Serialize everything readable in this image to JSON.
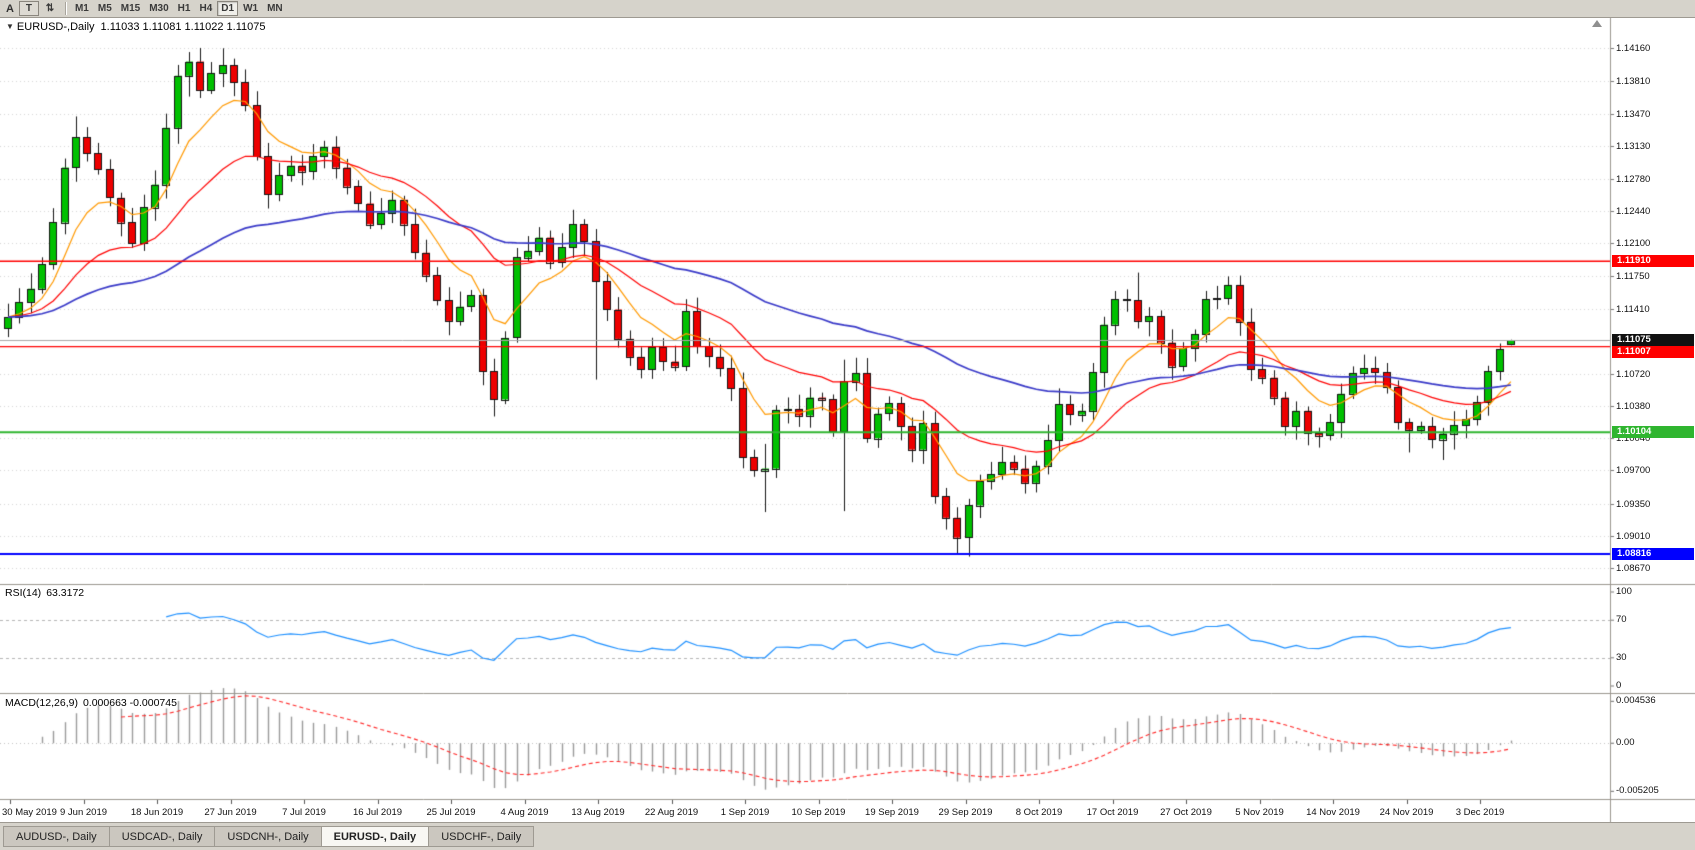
{
  "toolbar": {
    "label_a": "A",
    "text_button": "T",
    "cycle_button": "⇅",
    "timeframes": [
      "M1",
      "M5",
      "M15",
      "M30",
      "H1",
      "H4",
      "D1",
      "W1",
      "MN"
    ],
    "active_timeframe": "D1"
  },
  "chart_header": {
    "symbol_label": "EURUSD-,Daily",
    "ohlc": "1.11033 1.11081 1.11022 1.11075"
  },
  "price_scale_labels": [
    "1.14160",
    "1.13810",
    "1.13470",
    "1.13130",
    "1.12780",
    "1.12440",
    "1.12100",
    "1.11750",
    "1.11410",
    "1.10720",
    "1.10380",
    "1.10040",
    "1.09700",
    "1.09350",
    "1.09010",
    "1.08670"
  ],
  "levels": [
    {
      "value": "1.11910",
      "color": "#FF0000",
      "width": 1.3
    },
    {
      "value": "1.11007",
      "color": "#FF0000",
      "width": 1.3
    },
    {
      "value": "1.10104",
      "color": "#2FB52F",
      "width": 2
    },
    {
      "value": "1.08816",
      "color": "#0000FF",
      "width": 2
    }
  ],
  "current_price": {
    "value": "1.11075",
    "badge_color": "#111111",
    "line_color": "#a8a8a8"
  },
  "rsi_panel": {
    "name": "RSI(14)",
    "value": "63.3172",
    "scale_labels": [
      "100",
      "70",
      "30",
      "0"
    ],
    "level_lines": [
      70,
      30
    ],
    "line_color": "#1E90FF"
  },
  "macd_panel": {
    "name": "MACD(12,26,9)",
    "values": "0.000663 -0.000745",
    "scale_labels": [
      "0.004536",
      "0.00",
      "-0.005205"
    ],
    "hist_color": "#9a9a9a",
    "signal_color": "#FF2A2A"
  },
  "time_axis": [
    "30 May 2019",
    "9 Jun 2019",
    "18 Jun 2019",
    "27 Jun 2019",
    "7 Jul 2019",
    "16 Jul 2019",
    "25 Jul 2019",
    "4 Aug 2019",
    "13 Aug 2019",
    "22 Aug 2019",
    "1 Sep 2019",
    "10 Sep 2019",
    "19 Sep 2019",
    "29 Sep 2019",
    "8 Oct 2019",
    "17 Oct 2019",
    "27 Oct 2019",
    "5 Nov 2019",
    "14 Nov 2019",
    "24 Nov 2019",
    "3 Dec 2019"
  ],
  "tabs": [
    {
      "label": "AUDUSD-, Daily",
      "active": false
    },
    {
      "label": "USDCAD-, Daily",
      "active": false
    },
    {
      "label": "USDCNH-, Daily",
      "active": false
    },
    {
      "label": "EURUSD-, Daily",
      "active": true
    },
    {
      "label": "USDCHF-, Daily",
      "active": false
    }
  ],
  "chart_data": {
    "type": "candlestick",
    "symbol": "EURUSD",
    "period": "Daily",
    "y_range": [
      1.085,
      1.1448
    ],
    "macd_y_range": [
      -0.0056,
      0.0049
    ],
    "closes": [
      1.1132,
      1.1148,
      1.1162,
      1.1188,
      1.1232,
      1.129,
      1.1322,
      1.1305,
      1.1288,
      1.1258,
      1.1232,
      1.121,
      1.1248,
      1.1272,
      1.1332,
      1.1387,
      1.1402,
      1.1372,
      1.139,
      1.1398,
      1.138,
      1.1356,
      1.1302,
      1.1262,
      1.1282,
      1.1292,
      1.1286,
      1.1302,
      1.1312,
      1.129,
      1.127,
      1.1252,
      1.123,
      1.1242,
      1.1256,
      1.123,
      1.12,
      1.1176,
      1.115,
      1.1128,
      1.1143,
      1.1155,
      1.1075,
      1.1045,
      1.111,
      1.1195,
      1.1202,
      1.1216,
      1.119,
      1.1206,
      1.123,
      1.1212,
      1.117,
      1.114,
      1.1109,
      1.109,
      1.1077,
      1.11,
      1.1085,
      1.108,
      1.1138,
      1.1101,
      1.109,
      1.1078,
      1.1057,
      1.0984,
      1.097,
      1.0972,
      1.1034,
      1.1035,
      1.1028,
      1.1047,
      1.1045,
      1.1011,
      1.1064,
      1.1073,
      1.1004,
      1.103,
      1.1041,
      1.1017,
      1.0992,
      1.102,
      1.0943,
      1.092,
      1.0899,
      1.0933,
      1.0959,
      1.0966,
      1.0979,
      1.0972,
      1.0957,
      1.0975,
      1.1002,
      1.104,
      1.1029,
      1.1033,
      1.1074,
      1.1124,
      1.1151,
      1.115,
      1.1128,
      1.1133,
      1.1105,
      1.108,
      1.1099,
      1.1114,
      1.1151,
      1.1152,
      1.1166,
      1.1127,
      1.1077,
      1.1068,
      1.1047,
      1.1017,
      1.1033,
      1.101,
      1.1007,
      1.1021,
      1.1051,
      1.1073,
      1.1078,
      1.1074,
      1.1058,
      1.1021,
      1.1013,
      1.1017,
      1.1003,
      1.1009,
      1.1018,
      1.1024,
      1.1042,
      1.1075,
      1.1098,
      1.11075
    ],
    "overrides": {
      "6": [
        1.129,
        1.1344,
        1.1275,
        1.1322
      ],
      "16": [
        1.1387,
        1.1412,
        1.1365,
        1.1402
      ],
      "19": [
        1.139,
        1.1416,
        1.1375,
        1.1398
      ],
      "42": [
        1.1155,
        1.1162,
        1.106,
        1.1075
      ],
      "43": [
        1.1075,
        1.1088,
        1.1027,
        1.1045
      ],
      "44": [
        1.1045,
        1.1117,
        1.104,
        1.111
      ],
      "45": [
        1.111,
        1.1205,
        1.1105,
        1.1195
      ],
      "52": [
        1.1212,
        1.1225,
        1.1066,
        1.117
      ],
      "67": [
        1.097,
        1.0998,
        1.0926,
        1.0972
      ],
      "74": [
        1.1011,
        1.1087,
        1.0927,
        1.1064
      ],
      "85": [
        1.0899,
        1.094,
        1.0879,
        1.0933
      ],
      "100": [
        1.115,
        1.1179,
        1.112,
        1.1128
      ],
      "108": [
        1.1152,
        1.1175,
        1.1145,
        1.1166
      ],
      "124": [
        1.1021,
        1.1025,
        1.0989,
        1.1013
      ],
      "127": [
        1.1003,
        1.1015,
        1.0981,
        1.1009
      ],
      "133": [
        1.11033,
        1.11081,
        1.11022,
        1.11075
      ]
    },
    "moving_averages": [
      {
        "period": 8,
        "color": "#FF9900"
      },
      {
        "period": 21,
        "color": "#FF0000"
      },
      {
        "period": 55,
        "color": "#3A3AC8"
      }
    ],
    "indicators": {
      "rsi_period": 14,
      "macd": [
        12,
        26,
        9
      ]
    },
    "candle_colors": {
      "bull": "#00C000",
      "bear": "#ED0000",
      "outline": "#141414"
    },
    "grid_color": "#d4d4d4"
  }
}
